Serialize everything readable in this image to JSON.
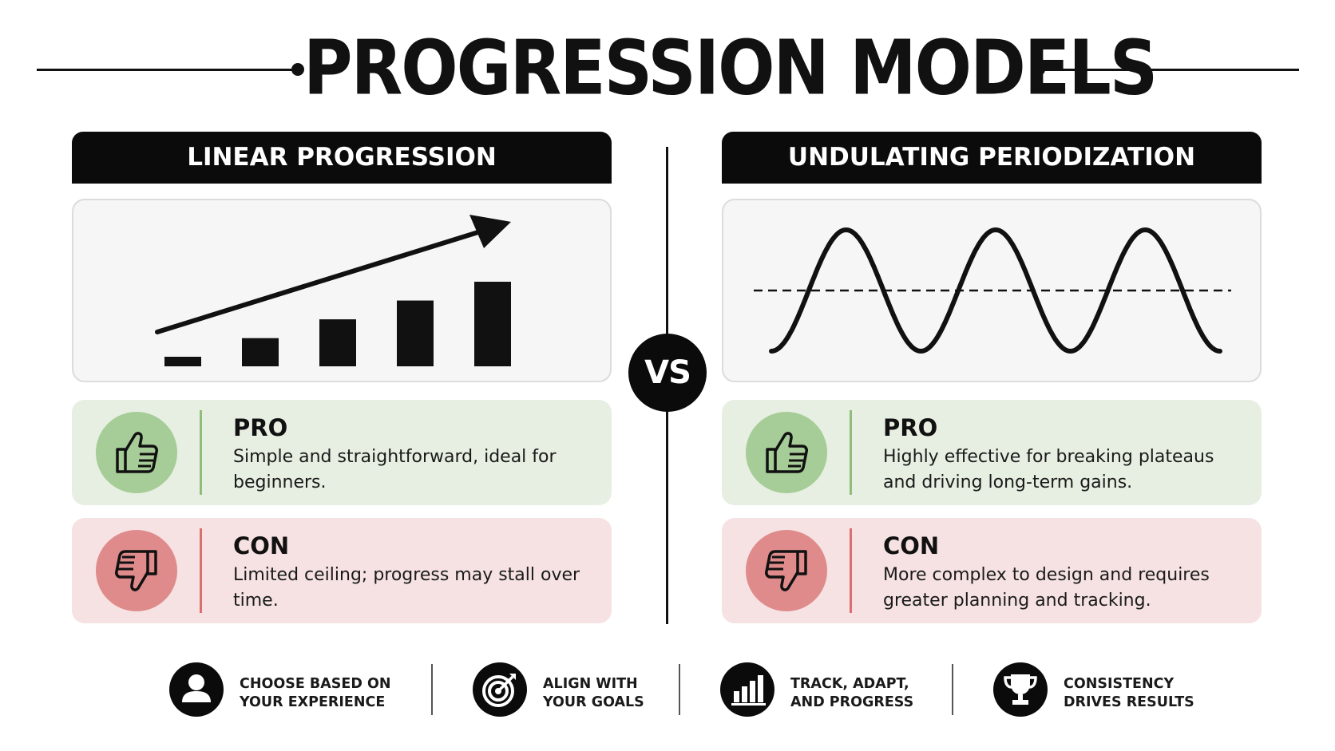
{
  "title": "PROGRESSION MODELS",
  "vs_label": "VS",
  "colors": {
    "header_bg": "#0b0b0b",
    "pro_bg": "#e6efe1",
    "pro_icon": "#a6cc97",
    "con_bg": "#f6e2e2",
    "con_icon": "#df8b8b"
  },
  "linear": {
    "header": "LINEAR PROGRESSION",
    "visual": "rising-bars-with-arrow",
    "bar_levels": [
      1,
      3,
      5,
      7,
      9
    ],
    "pro": {
      "label": "PRO",
      "icon": "thumbs-up-icon",
      "text": "Simple and straightforward, ideal for beginners."
    },
    "con": {
      "label": "CON",
      "icon": "thumbs-down-icon",
      "text": "Limited ceiling; progress may stall over time."
    }
  },
  "undulating": {
    "header": "UNDULATING PERIODIZATION",
    "visual": "sine-wave-with-dashed-baseline",
    "wave_peaks": 3,
    "pro": {
      "label": "PRO",
      "icon": "thumbs-up-icon",
      "text": "Highly effective for breaking plateaus and driving long-term gains."
    },
    "con": {
      "label": "CON",
      "icon": "thumbs-down-icon",
      "text": "More complex to design and requires greater planning and tracking."
    }
  },
  "footer": [
    {
      "icon": "user-icon",
      "line1": "CHOOSE BASED ON",
      "line2": "YOUR EXPERIENCE"
    },
    {
      "icon": "target-icon",
      "line1": "ALIGN WITH",
      "line2": "YOUR GOALS"
    },
    {
      "icon": "bar-chart-icon",
      "line1": "TRACK, ADAPT,",
      "line2": "AND PROGRESS"
    },
    {
      "icon": "trophy-icon",
      "line1": "CONSISTENCY",
      "line2": "DRIVES RESULTS"
    }
  ]
}
